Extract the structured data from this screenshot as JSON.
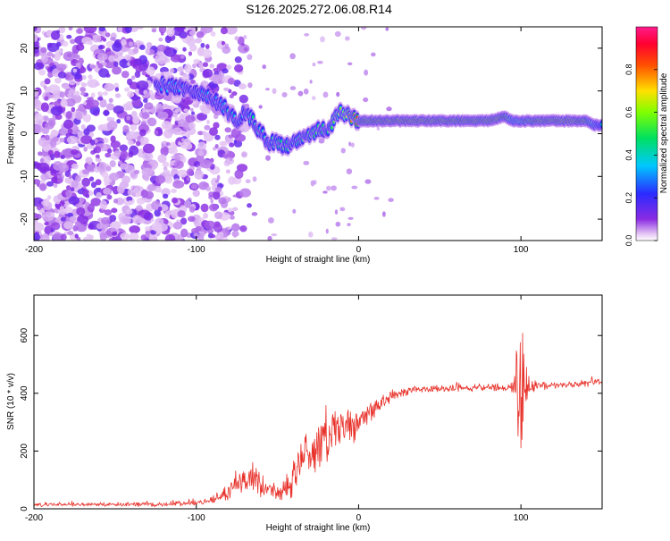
{
  "figure": {
    "title": "S126.2025.272.06.08.R14"
  },
  "chart_data": [
    {
      "type": "heatmap",
      "name": "spectrogram",
      "xlabel": "Height of straight line (km)",
      "ylabel": "Frequency (Hz)",
      "xlim": [
        -200,
        150
      ],
      "ylim": [
        -25,
        25
      ],
      "xticks": [
        -200,
        -100,
        0,
        100
      ],
      "xtick_labels": [
        "-200",
        "-100",
        "0",
        "100"
      ],
      "yticks": [
        -20,
        -10,
        0,
        10,
        20
      ],
      "ytick_labels": [
        "-20",
        "-10",
        "0",
        "10",
        "20"
      ],
      "colorbar": {
        "label": "Normalized spectral amplitude",
        "range": [
          0,
          1
        ],
        "ticks": [
          0.0,
          0.2,
          0.4,
          0.6,
          0.8
        ],
        "tick_labels": [
          "0.0",
          "0.2",
          "0.4",
          "0.6",
          "0.8"
        ],
        "colormap": "rainbow (violet-blue-cyan-green-yellow-red-magenta)"
      },
      "ridge": {
        "description": "dominant frequency trace vs height",
        "x": [
          -125,
          -118,
          -110,
          -100,
          -95,
          -90,
          -85,
          -80,
          -75,
          -70,
          -65,
          -60,
          -55,
          -50,
          -45,
          -40,
          -35,
          -30,
          -25,
          -20,
          -15,
          -12,
          -10,
          -5,
          0,
          10,
          20,
          40,
          60,
          80,
          85,
          90,
          95,
          100,
          110,
          130,
          140,
          145,
          150
        ],
        "y": [
          12,
          11,
          11,
          10,
          9,
          8,
          7,
          5,
          3,
          5,
          3,
          0,
          -2,
          -2,
          -3,
          -2,
          -1,
          0,
          1,
          1,
          3,
          5,
          5,
          4,
          3,
          3,
          3,
          3,
          3,
          3,
          3.5,
          4,
          3,
          3,
          3,
          3,
          3,
          2,
          2
        ],
        "amplitude": [
          0.3,
          0.35,
          0.3,
          0.25,
          0.4,
          0.3,
          0.3,
          0.45,
          0.35,
          0.3,
          0.45,
          0.4,
          0.4,
          0.45,
          0.45,
          0.4,
          0.45,
          0.5,
          0.5,
          0.45,
          0.55,
          0.6,
          0.6,
          0.8,
          0.9,
          0.95,
          1.0,
          1.0,
          0.95,
          0.95,
          1.0,
          0.9,
          0.6,
          0.7,
          0.95,
          1.0,
          0.9,
          0.5,
          0.4
        ]
      },
      "noise_region": {
        "description": "scattered low-amplitude speckle",
        "x_range": [
          -200,
          -90
        ],
        "amplitude_range": [
          0.0,
          0.25
        ]
      }
    },
    {
      "type": "line",
      "name": "snr",
      "xlabel": "Height of straight line (km)",
      "ylabel": "SNR (10 * v/v)",
      "xlim": [
        -200,
        150
      ],
      "ylim": [
        0,
        740
      ],
      "xticks": [
        -200,
        -100,
        0,
        100
      ],
      "xtick_labels": [
        "-200",
        "-100",
        "0",
        "100"
      ],
      "yticks": [
        0,
        200,
        400,
        600
      ],
      "ytick_labels": [
        "0",
        "200",
        "400",
        "600"
      ],
      "color": "#e8312a",
      "series": [
        {
          "name": "SNR",
          "x": [
            -200,
            -150,
            -120,
            -100,
            -90,
            -80,
            -75,
            -70,
            -65,
            -60,
            -55,
            -50,
            -45,
            -40,
            -35,
            -30,
            -25,
            -20,
            -15,
            -10,
            -5,
            0,
            5,
            10,
            15,
            20,
            25,
            30,
            40,
            50,
            60,
            70,
            80,
            90,
            95,
            98,
            100,
            102,
            105,
            110,
            120,
            130,
            140,
            150
          ],
          "y": [
            15,
            15,
            15,
            20,
            30,
            60,
            100,
            90,
            110,
            80,
            70,
            60,
            70,
            100,
            180,
            200,
            230,
            240,
            260,
            280,
            280,
            300,
            330,
            350,
            370,
            390,
            400,
            410,
            415,
            415,
            418,
            420,
            420,
            420,
            425,
            430,
            420,
            430,
            425,
            425,
            428,
            430,
            435,
            440
          ],
          "spread": [
            8,
            8,
            10,
            10,
            15,
            40,
            60,
            60,
            70,
            50,
            40,
            40,
            50,
            80,
            120,
            120,
            120,
            110,
            100,
            90,
            80,
            70,
            60,
            40,
            30,
            25,
            20,
            18,
            15,
            15,
            15,
            15,
            15,
            15,
            40,
            250,
            320,
            200,
            60,
            20,
            15,
            15,
            15,
            15
          ]
        }
      ]
    }
  ]
}
